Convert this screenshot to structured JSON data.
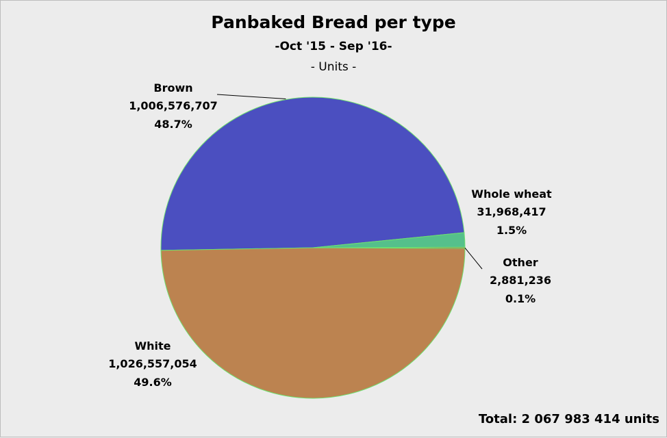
{
  "chart_data": {
    "type": "pie",
    "title": "Panbaked Bread per type",
    "subtitle": "-Oct '15 - Sep '16-",
    "units_label": "- Units -",
    "total_label": "Total: 2 067 983 414 units",
    "slices": [
      {
        "label": "Brown",
        "value": 1006576707,
        "value_label": "1,006,576,707",
        "percent_label": "48.7%",
        "color": "#4b4fc0"
      },
      {
        "label": "Whole wheat",
        "value": 31968417,
        "value_label": "31,968,417",
        "percent_label": "1.5%",
        "color": "#55c08b"
      },
      {
        "label": "Other",
        "value": 2881236,
        "value_label": "2,881,236",
        "percent_label": "0.1%",
        "color": "#b85a3c"
      },
      {
        "label": "White",
        "value": 1026557054,
        "value_label": "1,026,557,054",
        "percent_label": "49.6%",
        "color": "#bc8350"
      }
    ],
    "slice_border_color": "#6fe06f",
    "legend": "none"
  }
}
